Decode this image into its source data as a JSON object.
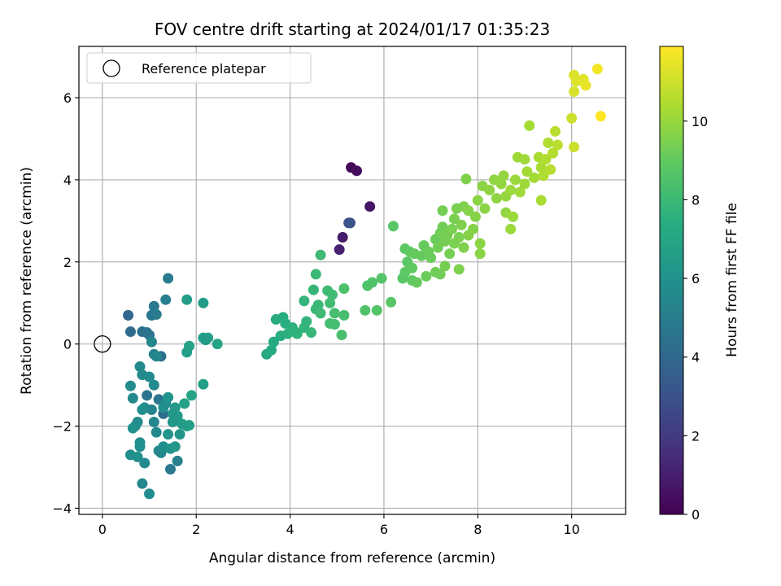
{
  "chart_data": {
    "type": "scatter",
    "title": "FOV centre drift starting at 2024/01/17 01:35:23",
    "xlabel": "Angular distance from reference (arcmin)",
    "ylabel": "Rotation from reference (arcmin)",
    "xlim": [
      -0.5,
      11.15
    ],
    "ylim": [
      -4.15,
      7.25
    ],
    "xticks": [
      0,
      2,
      4,
      6,
      8,
      10
    ],
    "yticks": [
      -4,
      -2,
      0,
      2,
      4,
      6
    ],
    "grid": true,
    "legend": {
      "placement": "top-left",
      "entries": [
        "Reference platepar"
      ]
    },
    "reference_point": {
      "x": 0,
      "y": 0,
      "label": "Reference platepar"
    },
    "colorbar": {
      "label": "Hours from first FF file",
      "colormap": "viridis",
      "range": [
        0,
        11.9
      ],
      "ticks": [
        0,
        2,
        4,
        6,
        8,
        10
      ]
    },
    "points": [
      {
        "x": 5.3,
        "y": 4.3,
        "c": 0.2
      },
      {
        "x": 5.42,
        "y": 4.22,
        "c": 0.4
      },
      {
        "x": 5.7,
        "y": 3.35,
        "c": 0.7
      },
      {
        "x": 5.12,
        "y": 2.6,
        "c": 0.9
      },
      {
        "x": 5.05,
        "y": 2.3,
        "c": 1.1
      },
      {
        "x": 5.28,
        "y": 2.95,
        "c": 2.6
      },
      {
        "x": 5.25,
        "y": 2.95,
        "c": 3.1
      },
      {
        "x": 0.55,
        "y": 0.7,
        "c": 4.0
      },
      {
        "x": 0.6,
        "y": 0.3,
        "c": 4.2
      },
      {
        "x": 0.85,
        "y": 0.3,
        "c": 4.4
      },
      {
        "x": 0.95,
        "y": 0.28,
        "c": 4.5
      },
      {
        "x": 1.0,
        "y": 0.22,
        "c": 4.6
      },
      {
        "x": 1.05,
        "y": 0.7,
        "c": 4.7
      },
      {
        "x": 1.1,
        "y": 0.92,
        "c": 4.8
      },
      {
        "x": 1.15,
        "y": 0.72,
        "c": 4.9
      },
      {
        "x": 1.25,
        "y": -0.3,
        "c": 4.3
      },
      {
        "x": 0.95,
        "y": -1.25,
        "c": 4.6
      },
      {
        "x": 1.2,
        "y": -1.35,
        "c": 4.7
      },
      {
        "x": 1.3,
        "y": -1.7,
        "c": 4.2
      },
      {
        "x": 1.45,
        "y": -3.05,
        "c": 4.9
      },
      {
        "x": 1.4,
        "y": 1.6,
        "c": 5.0
      },
      {
        "x": 1.1,
        "y": -0.25,
        "c": 5.3
      },
      {
        "x": 1.15,
        "y": -0.3,
        "c": 5.5
      },
      {
        "x": 1.35,
        "y": 1.08,
        "c": 5.1
      },
      {
        "x": 1.6,
        "y": -2.85,
        "c": 5.2
      },
      {
        "x": 0.8,
        "y": -0.55,
        "c": 5.6
      },
      {
        "x": 0.85,
        "y": -0.75,
        "c": 5.6
      },
      {
        "x": 1.05,
        "y": 0.05,
        "c": 5.5
      },
      {
        "x": 1.0,
        "y": -0.8,
        "c": 5.7
      },
      {
        "x": 1.1,
        "y": -1.0,
        "c": 5.7
      },
      {
        "x": 0.6,
        "y": -1.02,
        "c": 5.7
      },
      {
        "x": 0.65,
        "y": -1.32,
        "c": 5.6
      },
      {
        "x": 0.9,
        "y": -1.55,
        "c": 5.8
      },
      {
        "x": 0.85,
        "y": -1.6,
        "c": 5.9
      },
      {
        "x": 1.05,
        "y": -1.6,
        "c": 5.4
      },
      {
        "x": 1.1,
        "y": -1.9,
        "c": 5.5
      },
      {
        "x": 1.15,
        "y": -2.15,
        "c": 5.6
      },
      {
        "x": 0.75,
        "y": -1.9,
        "c": 5.7
      },
      {
        "x": 0.7,
        "y": -2.0,
        "c": 5.8
      },
      {
        "x": 0.65,
        "y": -2.05,
        "c": 6.0
      },
      {
        "x": 0.8,
        "y": -2.4,
        "c": 5.9
      },
      {
        "x": 0.8,
        "y": -2.5,
        "c": 6.0
      },
      {
        "x": 0.6,
        "y": -2.7,
        "c": 5.9
      },
      {
        "x": 0.75,
        "y": -2.75,
        "c": 6.0
      },
      {
        "x": 0.9,
        "y": -2.9,
        "c": 5.7
      },
      {
        "x": 1.2,
        "y": -2.6,
        "c": 5.6
      },
      {
        "x": 1.25,
        "y": -2.65,
        "c": 5.5
      },
      {
        "x": 1.3,
        "y": -2.5,
        "c": 5.8
      },
      {
        "x": 1.45,
        "y": -2.55,
        "c": 6.1
      },
      {
        "x": 1.55,
        "y": -2.5,
        "c": 6.3
      },
      {
        "x": 1.4,
        "y": -2.2,
        "c": 6.2
      },
      {
        "x": 1.5,
        "y": -1.9,
        "c": 6.3
      },
      {
        "x": 1.6,
        "y": -1.75,
        "c": 6.4
      },
      {
        "x": 1.65,
        "y": -2.2,
        "c": 6.2
      },
      {
        "x": 1.7,
        "y": -1.95,
        "c": 6.5
      },
      {
        "x": 1.8,
        "y": -2.0,
        "c": 6.6
      },
      {
        "x": 1.85,
        "y": -1.98,
        "c": 6.7
      },
      {
        "x": 1.55,
        "y": -1.55,
        "c": 6.4
      },
      {
        "x": 1.3,
        "y": -1.55,
        "c": 6.0
      },
      {
        "x": 1.35,
        "y": -1.45,
        "c": 5.9
      },
      {
        "x": 1.4,
        "y": -1.3,
        "c": 6.1
      },
      {
        "x": 1.5,
        "y": -1.7,
        "c": 6.3
      },
      {
        "x": 1.75,
        "y": -1.45,
        "c": 6.8
      },
      {
        "x": 1.9,
        "y": -1.25,
        "c": 6.9
      },
      {
        "x": 0.85,
        "y": -3.4,
        "c": 5.5
      },
      {
        "x": 1.0,
        "y": -3.65,
        "c": 5.8
      },
      {
        "x": 1.8,
        "y": 1.08,
        "c": 6.6
      },
      {
        "x": 1.8,
        "y": -0.2,
        "c": 6.7
      },
      {
        "x": 1.85,
        "y": -0.05,
        "c": 6.8
      },
      {
        "x": 2.15,
        "y": 1.0,
        "c": 6.6
      },
      {
        "x": 2.15,
        "y": 0.15,
        "c": 6.7
      },
      {
        "x": 2.25,
        "y": 0.15,
        "c": 6.8
      },
      {
        "x": 2.2,
        "y": 0.1,
        "c": 6.5
      },
      {
        "x": 2.45,
        "y": 0.0,
        "c": 6.9
      },
      {
        "x": 2.15,
        "y": -0.98,
        "c": 6.7
      },
      {
        "x": 3.5,
        "y": -0.25,
        "c": 7.2
      },
      {
        "x": 3.6,
        "y": -0.15,
        "c": 7.3
      },
      {
        "x": 3.65,
        "y": 0.05,
        "c": 7.3
      },
      {
        "x": 3.7,
        "y": 0.6,
        "c": 7.4
      },
      {
        "x": 3.85,
        "y": 0.65,
        "c": 7.4
      },
      {
        "x": 3.8,
        "y": 0.2,
        "c": 7.5
      },
      {
        "x": 3.95,
        "y": 0.25,
        "c": 7.6
      },
      {
        "x": 3.9,
        "y": 0.5,
        "c": 7.5
      },
      {
        "x": 4.05,
        "y": 0.4,
        "c": 7.6
      },
      {
        "x": 4.1,
        "y": 0.3,
        "c": 7.7
      },
      {
        "x": 4.15,
        "y": 0.25,
        "c": 7.7
      },
      {
        "x": 4.3,
        "y": 0.4,
        "c": 7.8
      },
      {
        "x": 4.35,
        "y": 0.55,
        "c": 7.8
      },
      {
        "x": 4.45,
        "y": 0.28,
        "c": 7.9
      },
      {
        "x": 4.3,
        "y": 1.05,
        "c": 7.8
      },
      {
        "x": 4.5,
        "y": 1.32,
        "c": 7.9
      },
      {
        "x": 4.55,
        "y": 0.85,
        "c": 8.0
      },
      {
        "x": 4.6,
        "y": 0.95,
        "c": 8.0
      },
      {
        "x": 4.65,
        "y": 0.75,
        "c": 8.1
      },
      {
        "x": 4.55,
        "y": 1.7,
        "c": 8.0
      },
      {
        "x": 4.65,
        "y": 2.17,
        "c": 8.1
      },
      {
        "x": 4.8,
        "y": 1.3,
        "c": 8.1
      },
      {
        "x": 4.85,
        "y": 1.0,
        "c": 8.2
      },
      {
        "x": 4.9,
        "y": 1.2,
        "c": 8.2
      },
      {
        "x": 4.95,
        "y": 0.75,
        "c": 8.3
      },
      {
        "x": 4.85,
        "y": 0.5,
        "c": 8.3
      },
      {
        "x": 4.95,
        "y": 0.48,
        "c": 8.3
      },
      {
        "x": 5.1,
        "y": 0.22,
        "c": 8.4
      },
      {
        "x": 5.15,
        "y": 0.7,
        "c": 8.4
      },
      {
        "x": 5.15,
        "y": 1.35,
        "c": 8.5
      },
      {
        "x": 5.6,
        "y": 0.82,
        "c": 8.6
      },
      {
        "x": 5.65,
        "y": 1.42,
        "c": 8.6
      },
      {
        "x": 5.75,
        "y": 1.5,
        "c": 8.6
      },
      {
        "x": 5.85,
        "y": 0.82,
        "c": 8.7
      },
      {
        "x": 5.95,
        "y": 1.6,
        "c": 8.7
      },
      {
        "x": 6.15,
        "y": 1.02,
        "c": 8.8
      },
      {
        "x": 6.2,
        "y": 2.87,
        "c": 8.8
      },
      {
        "x": 6.4,
        "y": 1.6,
        "c": 8.8
      },
      {
        "x": 6.45,
        "y": 1.75,
        "c": 8.9
      },
      {
        "x": 6.5,
        "y": 2.0,
        "c": 8.9
      },
      {
        "x": 6.45,
        "y": 2.32,
        "c": 8.9
      },
      {
        "x": 6.55,
        "y": 2.25,
        "c": 9.0
      },
      {
        "x": 6.6,
        "y": 1.55,
        "c": 9.0
      },
      {
        "x": 6.6,
        "y": 1.85,
        "c": 9.0
      },
      {
        "x": 6.65,
        "y": 2.2,
        "c": 9.1
      },
      {
        "x": 6.7,
        "y": 1.5,
        "c": 9.1
      },
      {
        "x": 6.8,
        "y": 2.15,
        "c": 9.1
      },
      {
        "x": 6.85,
        "y": 2.4,
        "c": 9.1
      },
      {
        "x": 6.9,
        "y": 1.65,
        "c": 9.2
      },
      {
        "x": 6.95,
        "y": 2.25,
        "c": 9.2
      },
      {
        "x": 7.0,
        "y": 2.1,
        "c": 9.2
      },
      {
        "x": 7.1,
        "y": 2.55,
        "c": 9.2
      },
      {
        "x": 7.1,
        "y": 1.75,
        "c": 9.3
      },
      {
        "x": 7.15,
        "y": 2.35,
        "c": 9.3
      },
      {
        "x": 7.2,
        "y": 2.7,
        "c": 9.3
      },
      {
        "x": 7.2,
        "y": 1.7,
        "c": 9.3
      },
      {
        "x": 7.25,
        "y": 2.85,
        "c": 9.3
      },
      {
        "x": 7.25,
        "y": 3.25,
        "c": 9.4
      },
      {
        "x": 7.3,
        "y": 2.5,
        "c": 9.4
      },
      {
        "x": 7.3,
        "y": 1.9,
        "c": 9.4
      },
      {
        "x": 7.35,
        "y": 2.65,
        "c": 9.4
      },
      {
        "x": 7.4,
        "y": 2.2,
        "c": 9.4
      },
      {
        "x": 7.45,
        "y": 2.8,
        "c": 9.5
      },
      {
        "x": 7.5,
        "y": 2.45,
        "c": 9.5
      },
      {
        "x": 7.5,
        "y": 3.05,
        "c": 9.5
      },
      {
        "x": 7.55,
        "y": 3.3,
        "c": 9.5
      },
      {
        "x": 7.6,
        "y": 2.6,
        "c": 9.5
      },
      {
        "x": 7.6,
        "y": 1.82,
        "c": 9.6
      },
      {
        "x": 7.65,
        "y": 2.9,
        "c": 9.6
      },
      {
        "x": 7.7,
        "y": 3.35,
        "c": 9.6
      },
      {
        "x": 7.7,
        "y": 2.35,
        "c": 9.6
      },
      {
        "x": 7.75,
        "y": 4.02,
        "c": 9.6
      },
      {
        "x": 7.8,
        "y": 3.25,
        "c": 9.7
      },
      {
        "x": 7.8,
        "y": 2.65,
        "c": 9.7
      },
      {
        "x": 7.9,
        "y": 2.8,
        "c": 9.7
      },
      {
        "x": 7.95,
        "y": 3.1,
        "c": 9.7
      },
      {
        "x": 8.0,
        "y": 3.5,
        "c": 9.8
      },
      {
        "x": 8.05,
        "y": 2.45,
        "c": 9.8
      },
      {
        "x": 8.05,
        "y": 2.2,
        "c": 9.8
      },
      {
        "x": 8.1,
        "y": 3.85,
        "c": 9.8
      },
      {
        "x": 8.15,
        "y": 3.3,
        "c": 9.8
      },
      {
        "x": 8.25,
        "y": 3.75,
        "c": 9.9
      },
      {
        "x": 8.35,
        "y": 4.0,
        "c": 9.9
      },
      {
        "x": 8.4,
        "y": 3.55,
        "c": 9.9
      },
      {
        "x": 8.5,
        "y": 3.9,
        "c": 10.0
      },
      {
        "x": 8.55,
        "y": 4.1,
        "c": 10.0
      },
      {
        "x": 8.6,
        "y": 3.6,
        "c": 10.0
      },
      {
        "x": 8.6,
        "y": 3.2,
        "c": 10.0
      },
      {
        "x": 8.7,
        "y": 3.75,
        "c": 10.1
      },
      {
        "x": 8.7,
        "y": 2.8,
        "c": 10.1
      },
      {
        "x": 8.75,
        "y": 3.1,
        "c": 10.1
      },
      {
        "x": 8.8,
        "y": 4.0,
        "c": 10.1
      },
      {
        "x": 8.85,
        "y": 4.55,
        "c": 10.2
      },
      {
        "x": 8.9,
        "y": 3.7,
        "c": 10.2
      },
      {
        "x": 9.0,
        "y": 4.5,
        "c": 10.2
      },
      {
        "x": 9.0,
        "y": 3.9,
        "c": 10.2
      },
      {
        "x": 9.05,
        "y": 4.2,
        "c": 10.3
      },
      {
        "x": 9.1,
        "y": 5.32,
        "c": 10.3
      },
      {
        "x": 9.2,
        "y": 4.05,
        "c": 10.3
      },
      {
        "x": 9.3,
        "y": 4.55,
        "c": 10.4
      },
      {
        "x": 9.35,
        "y": 3.5,
        "c": 10.4
      },
      {
        "x": 9.35,
        "y": 4.3,
        "c": 10.4
      },
      {
        "x": 9.4,
        "y": 4.1,
        "c": 10.5
      },
      {
        "x": 9.45,
        "y": 4.5,
        "c": 10.5
      },
      {
        "x": 9.5,
        "y": 4.9,
        "c": 10.5
      },
      {
        "x": 9.55,
        "y": 4.25,
        "c": 10.6
      },
      {
        "x": 9.6,
        "y": 4.65,
        "c": 10.6
      },
      {
        "x": 9.65,
        "y": 5.18,
        "c": 10.7
      },
      {
        "x": 9.7,
        "y": 4.85,
        "c": 10.7
      },
      {
        "x": 10.0,
        "y": 5.5,
        "c": 11.0
      },
      {
        "x": 10.05,
        "y": 4.8,
        "c": 11.0
      },
      {
        "x": 10.05,
        "y": 6.15,
        "c": 11.2
      },
      {
        "x": 10.05,
        "y": 6.55,
        "c": 11.3
      },
      {
        "x": 10.1,
        "y": 6.4,
        "c": 11.3
      },
      {
        "x": 10.25,
        "y": 6.45,
        "c": 11.4
      },
      {
        "x": 10.3,
        "y": 6.3,
        "c": 11.5
      },
      {
        "x": 10.55,
        "y": 6.7,
        "c": 11.7
      },
      {
        "x": 10.62,
        "y": 5.55,
        "c": 11.9
      }
    ]
  }
}
